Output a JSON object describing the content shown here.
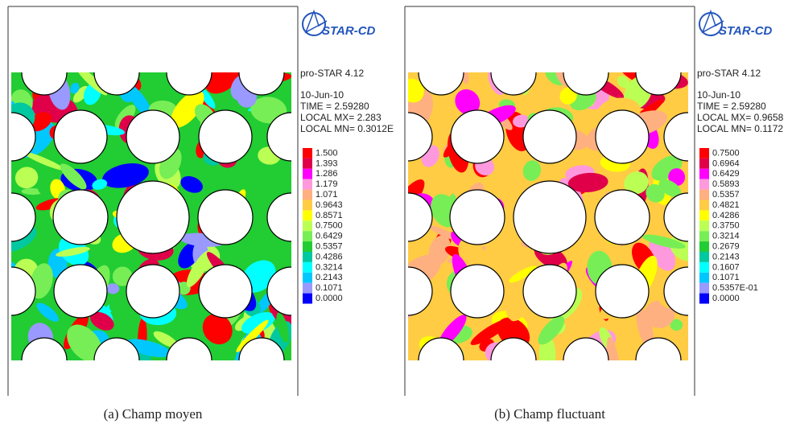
{
  "panels": [
    {
      "logo": "STAR-CD",
      "version": "pro-STAR 4.12",
      "date": "10-Jun-10",
      "time": "TIME = 2.59280",
      "local_max": "LOCAL MX= 2.283",
      "local_min": "LOCAL MN= 0.3012E",
      "legend": [
        {
          "label": "1.500",
          "color": "#ff0000"
        },
        {
          "label": "1.393",
          "color": "#e0004a"
        },
        {
          "label": "1.286",
          "color": "#ff00ff"
        },
        {
          "label": "1.179",
          "color": "#ff99dd"
        },
        {
          "label": "1.071",
          "color": "#ffb080"
        },
        {
          "label": "0.9643",
          "color": "#ffcc44"
        },
        {
          "label": "0.8571",
          "color": "#ffff00"
        },
        {
          "label": "0.7500",
          "color": "#bbff55"
        },
        {
          "label": "0.6429",
          "color": "#77ee55"
        },
        {
          "label": "0.5357",
          "color": "#22cc33"
        },
        {
          "label": "0.4286",
          "color": "#00c8a0"
        },
        {
          "label": "0.3214",
          "color": "#00ffff"
        },
        {
          "label": "0.2143",
          "color": "#00c8ff"
        },
        {
          "label": "0.1071",
          "color": "#9999ff"
        },
        {
          "label": "0.0000",
          "color": "#0000ff"
        }
      ],
      "caption": "(a) Champ moyen"
    },
    {
      "logo": "STAR-CD",
      "version": "pro-STAR 4.12",
      "date": "10-Jun-10",
      "time": "TIME = 2.59280",
      "local_max": "LOCAL MX= 0.9658",
      "local_min": "LOCAL MN= 0.1172",
      "legend": [
        {
          "label": "0.7500",
          "color": "#ff0000"
        },
        {
          "label": "0.6964",
          "color": "#e0004a"
        },
        {
          "label": "0.6429",
          "color": "#ff00ff"
        },
        {
          "label": "0.5893",
          "color": "#ff99dd"
        },
        {
          "label": "0.5357",
          "color": "#ffb080"
        },
        {
          "label": "0.4821",
          "color": "#ffcc44"
        },
        {
          "label": "0.4286",
          "color": "#ffff00"
        },
        {
          "label": "0.3750",
          "color": "#bbff55"
        },
        {
          "label": "0.3214",
          "color": "#77ee55"
        },
        {
          "label": "0.2679",
          "color": "#22cc33"
        },
        {
          "label": "0.2143",
          "color": "#00c8a0"
        },
        {
          "label": "0.1607",
          "color": "#00ffff"
        },
        {
          "label": "0.1071",
          "color": "#00c8ff"
        },
        {
          "label": "0.5357E-01",
          "color": "#9999ff"
        },
        {
          "label": "0.0000",
          "color": "#0000ff"
        }
      ],
      "caption": "(b) Champ fluctuant"
    }
  ]
}
